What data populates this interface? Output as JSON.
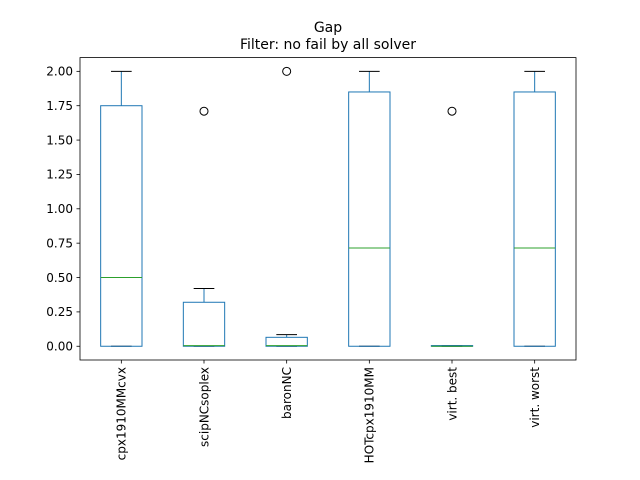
{
  "chart_data": {
    "type": "box",
    "title": "Gap",
    "subtitle": "Filter: no fail by all solver",
    "xlabel": "",
    "ylabel": "",
    "ylim": [
      -0.1,
      2.1
    ],
    "yticks": [
      0.0,
      0.25,
      0.5,
      0.75,
      1.0,
      1.25,
      1.5,
      1.75,
      2.0
    ],
    "ytick_labels": [
      "0.00",
      "0.25",
      "0.50",
      "0.75",
      "1.00",
      "1.25",
      "1.50",
      "1.75",
      "2.00"
    ],
    "grid": false,
    "legend": "none",
    "colors": {
      "box": "#1f77b4",
      "median": "#2ca02c",
      "whisker": "#1f77b4",
      "cap": "#000000",
      "flier": "#000000"
    },
    "categories": [
      "cpx1910MMcvx",
      "scipNCsoplex",
      "baronNC",
      "HOTcpx1910MM",
      "virt. best",
      "virt. worst"
    ],
    "boxes": [
      {
        "name": "cpx1910MMcvx",
        "whislo": 0.0,
        "q1": 0.0,
        "med": 0.5,
        "q3": 1.75,
        "whishi": 2.0,
        "fliers": []
      },
      {
        "name": "scipNCsoplex",
        "whislo": 0.0,
        "q1": 0.0,
        "med": 0.005,
        "q3": 0.32,
        "whishi": 0.42,
        "fliers": [
          1.71
        ]
      },
      {
        "name": "baronNC",
        "whislo": 0.0,
        "q1": 0.0,
        "med": 0.005,
        "q3": 0.065,
        "whishi": 0.085,
        "fliers": [
          2.0
        ]
      },
      {
        "name": "HOTcpx1910MM",
        "whislo": 0.0,
        "q1": 0.0,
        "med": 0.715,
        "q3": 1.85,
        "whishi": 2.0,
        "fliers": []
      },
      {
        "name": "virt. best",
        "whislo": 0.0,
        "q1": 0.0,
        "med": 0.0,
        "q3": 0.005,
        "whishi": 0.005,
        "fliers": [
          1.71
        ]
      },
      {
        "name": "virt. worst",
        "whislo": 0.0,
        "q1": 0.0,
        "med": 0.715,
        "q3": 1.85,
        "whishi": 2.0,
        "fliers": []
      }
    ]
  }
}
